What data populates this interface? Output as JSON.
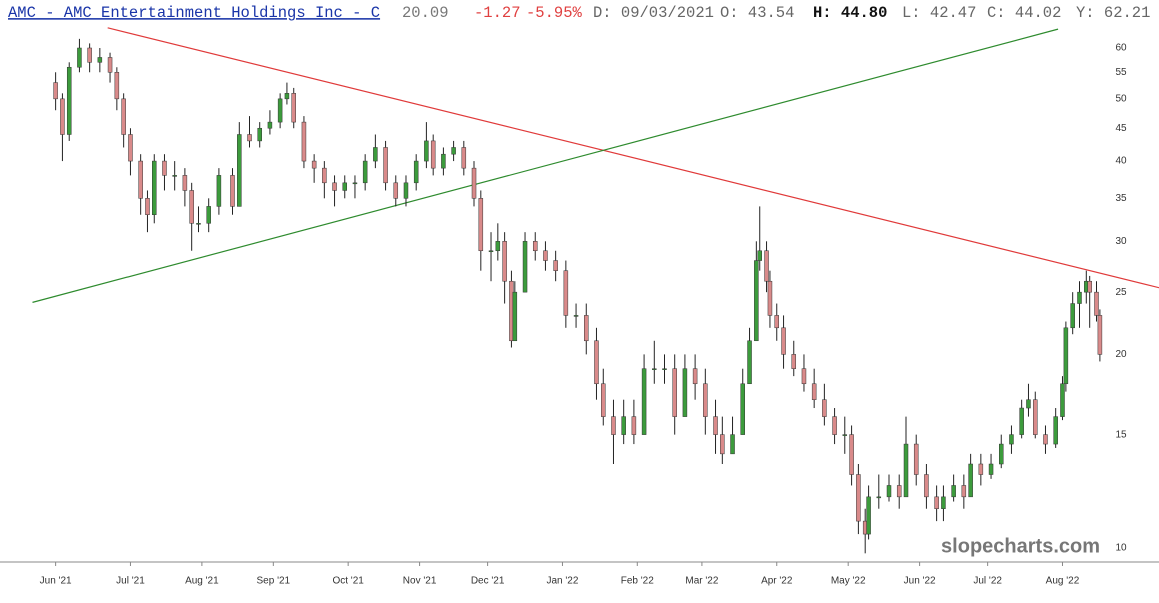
{
  "header": {
    "symbol_link": "AMC - AMC Entertainment Holdings Inc - C",
    "last": "20.09",
    "change": "-1.27",
    "change_pct": "-5.95%",
    "date": "D: 09/03/2021",
    "open": "O: 43.54",
    "high": "H: 44.80",
    "low": "L: 42.47",
    "close": "C: 44.02",
    "year_high": "Y: 62.21"
  },
  "watermark": "slopecharts.com",
  "chart_data": {
    "type": "candlestick",
    "log_scale": true,
    "up_color": "#3c9b3c",
    "down_color": "#d98a8a",
    "x": [
      0,
      2,
      4,
      7,
      10,
      13,
      16,
      18,
      20,
      22,
      25,
      27,
      29,
      32,
      35,
      38,
      40,
      42,
      45,
      48,
      52,
      54,
      57,
      60,
      63,
      66,
      68,
      70,
      73,
      76,
      79,
      82,
      85,
      88,
      91,
      94,
      97,
      100,
      103,
      106,
      109,
      111,
      114,
      117,
      120,
      123,
      125,
      128,
      130,
      132,
      134,
      135,
      138,
      141,
      144,
      147,
      150,
      153,
      156,
      159,
      161,
      164,
      167,
      170,
      173,
      176,
      179,
      182,
      185,
      188,
      191,
      194,
      196,
      199,
      202,
      204,
      206,
      207,
      209,
      210,
      212,
      214,
      217,
      220,
      223,
      226,
      229,
      232,
      234,
      236,
      238,
      239,
      242,
      245,
      248,
      250,
      253,
      256,
      259,
      261,
      264,
      267,
      269,
      272,
      275,
      278,
      281,
      284,
      286,
      288,
      291,
      294,
      296,
      297,
      299,
      301,
      303,
      304,
      306,
      307
    ],
    "open": [
      53,
      50,
      44,
      56,
      60,
      57,
      58,
      55,
      50,
      44,
      40,
      35,
      33,
      40,
      38,
      38,
      36,
      32,
      32,
      34,
      38,
      34,
      44,
      43,
      45,
      46,
      50,
      51,
      46,
      40,
      39,
      37,
      36,
      37,
      37,
      40,
      42,
      37,
      35,
      37,
      40,
      43,
      39,
      41,
      42,
      39,
      35,
      29,
      29,
      30,
      26,
      21,
      25,
      30,
      29,
      28,
      27,
      23,
      23,
      21,
      18,
      16,
      15,
      16,
      15,
      19,
      19,
      19,
      16,
      19,
      18,
      16,
      15,
      14,
      15,
      18,
      21,
      28,
      29,
      26,
      23,
      22,
      20,
      19,
      18,
      17,
      16,
      15,
      15,
      13,
      11,
      10.5,
      12,
      12,
      12.5,
      12,
      14.5,
      13,
      12,
      11.5,
      12,
      12.5,
      12,
      13.5,
      13,
      13.5,
      14.5,
      15,
      16.5,
      17,
      15,
      14.5,
      16,
      18,
      22,
      24,
      25,
      26,
      25,
      23
    ],
    "high": [
      55,
      51,
      57,
      62,
      61,
      60,
      59,
      56,
      51,
      45,
      41,
      36,
      41,
      41,
      40,
      39,
      37,
      34,
      35,
      39,
      39,
      46,
      47,
      46,
      48,
      51,
      53,
      52,
      47,
      41,
      40,
      38,
      38,
      38,
      41,
      44,
      43,
      38,
      38,
      41,
      46,
      44,
      42,
      43,
      43,
      40,
      36,
      31,
      32,
      31,
      27,
      26,
      31,
      31,
      30,
      29,
      28,
      24,
      24,
      22,
      19,
      17,
      17,
      17,
      20,
      21,
      20,
      20,
      20,
      20,
      19,
      17,
      16,
      16,
      19,
      22,
      30,
      34,
      30,
      27,
      24,
      23,
      21,
      20,
      19,
      18,
      16.5,
      16,
      15.5,
      13.5,
      11.5,
      12.5,
      13,
      13,
      13,
      16,
      15,
      13.5,
      12.5,
      12.5,
      13,
      13,
      14,
      14,
      14,
      15,
      15.5,
      17,
      18,
      17.5,
      15.5,
      16.5,
      18.5,
      22.5,
      25,
      26,
      27,
      26.5,
      26,
      23.5
    ],
    "low": [
      48,
      40,
      43,
      55,
      55,
      55,
      53,
      48,
      42,
      38,
      33,
      31,
      32,
      36,
      36,
      34,
      29,
      31,
      31,
      33,
      33,
      34,
      42,
      42,
      44,
      45,
      49,
      45,
      39,
      37,
      35,
      34,
      35,
      35,
      36,
      39,
      36,
      34,
      34,
      36,
      39,
      38,
      38,
      40,
      38,
      34,
      27,
      26,
      28,
      24,
      20.5,
      21,
      25,
      28,
      27,
      26,
      22,
      22,
      20,
      17,
      15.5,
      13.5,
      14.5,
      14.5,
      15,
      18,
      18,
      15,
      16,
      17,
      15,
      14,
      13.5,
      14,
      15,
      18,
      21,
      27,
      25,
      22,
      21,
      19,
      18.5,
      17.5,
      16.5,
      15.5,
      14.5,
      14,
      12.5,
      10.5,
      9.8,
      10.3,
      11.5,
      11.8,
      11.5,
      12,
      12.5,
      11.5,
      11,
      11,
      11.8,
      11.5,
      12,
      12.5,
      12.8,
      13.3,
      14,
      14.8,
      16,
      14.8,
      14,
      14.3,
      15.8,
      17.5,
      21.5,
      22,
      24,
      22,
      22.5,
      19.5
    ],
    "close": [
      50,
      44,
      56,
      60,
      57,
      58,
      55,
      50,
      44,
      40,
      35,
      33,
      40,
      38,
      38,
      36,
      32,
      32,
      34,
      38,
      34,
      44,
      43,
      45,
      46,
      50,
      51,
      46,
      40,
      39,
      37,
      36,
      37,
      37,
      40,
      42,
      37,
      35,
      37,
      40,
      43,
      39,
      41,
      42,
      39,
      35,
      29,
      29,
      30,
      26,
      21,
      25,
      30,
      29,
      28,
      27,
      23,
      23,
      21,
      18,
      16,
      15,
      16,
      15,
      19,
      19,
      19,
      16,
      19,
      18,
      16,
      15,
      14,
      15,
      18,
      21,
      28,
      29,
      26,
      23,
      22,
      20,
      19,
      18,
      17,
      16,
      15,
      15,
      13,
      11,
      10.5,
      12,
      12,
      12.5,
      12,
      14.5,
      13,
      12,
      11.5,
      12,
      12.5,
      12,
      13.5,
      13,
      13.5,
      14.5,
      15,
      16.5,
      17,
      15,
      14.5,
      16,
      18,
      22,
      24,
      25,
      26,
      25,
      23,
      20
    ],
    "xlim": [
      -14,
      308.5
    ],
    "xticks": [
      {
        "value": 0,
        "label": "Jun '21"
      },
      {
        "value": 22,
        "label": "Jul '21"
      },
      {
        "value": 43,
        "label": "Aug '21"
      },
      {
        "value": 64,
        "label": "Sep '21"
      },
      {
        "value": 86,
        "label": "Oct '21"
      },
      {
        "value": 107,
        "label": "Nov '21"
      },
      {
        "value": 127,
        "label": "Dec '21"
      },
      {
        "value": 149,
        "label": "Jan '22"
      },
      {
        "value": 171,
        "label": "Feb '22"
      },
      {
        "value": 190,
        "label": "Mar '22"
      },
      {
        "value": 212,
        "label": "Apr '22"
      },
      {
        "value": 233,
        "label": "May '22"
      },
      {
        "value": 254,
        "label": "Jun '22"
      },
      {
        "value": 274,
        "label": "Jul '22"
      },
      {
        "value": 296,
        "label": "Aug '22"
      }
    ],
    "ylim": [
      9.5,
      64
    ],
    "yticks": [
      10,
      15,
      20,
      25,
      30,
      35,
      40,
      45,
      50,
      55,
      60
    ],
    "trendlines": [
      {
        "color": "#e03a3a",
        "x": [
          15.3,
          324.4
        ],
        "y": [
          64.5,
          25.4
        ]
      },
      {
        "color": "#2e8b2e",
        "x": [
          -6.8,
          294.7
        ],
        "y": [
          24.1,
          64.2
        ]
      }
    ]
  }
}
